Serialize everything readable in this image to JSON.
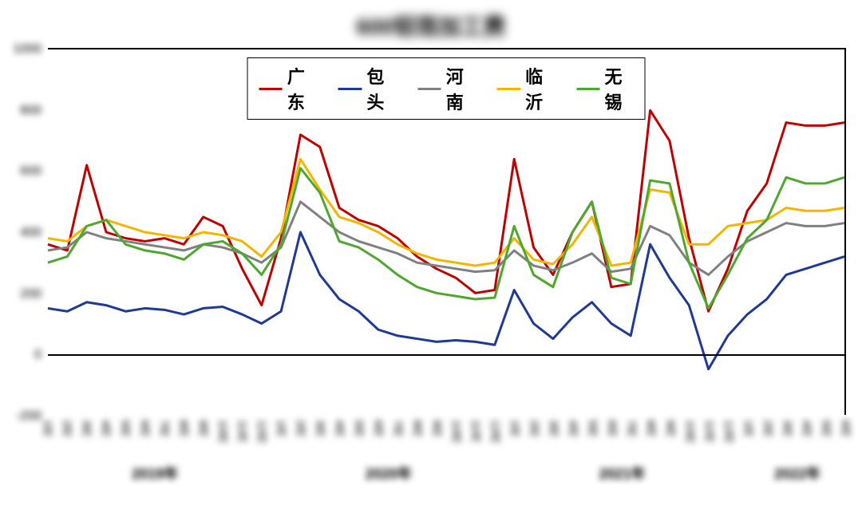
{
  "chart": {
    "type": "line",
    "title": "600铝箔加工费",
    "title_fontsize": 28,
    "background_color": "#ffffff",
    "plot_border_color": "#000000",
    "ylim": [
      -200,
      1000
    ],
    "ytick_step": 200,
    "yticks": [
      -200,
      0,
      200,
      400,
      600,
      800,
      1000
    ],
    "x_count": 42,
    "x_labels": [
      "1月",
      "2月",
      "3月",
      "4月",
      "5月",
      "6月",
      "7月",
      "8月",
      "9月",
      "10月",
      "11月",
      "12月",
      "1月",
      "2月",
      "3月",
      "4月",
      "5月",
      "6月",
      "7月",
      "8月",
      "9月",
      "10月",
      "11月",
      "12月",
      "1月",
      "2月",
      "3月",
      "4月",
      "5月",
      "6月",
      "7月",
      "8月",
      "9月",
      "10月",
      "11月",
      "12月",
      "1月",
      "2月",
      "3月",
      "4月",
      "5月",
      "6月"
    ],
    "year_breaks": [
      {
        "label": "2019年",
        "center_index": 5.5
      },
      {
        "label": "2020年",
        "center_index": 17.5
      },
      {
        "label": "2021年",
        "center_index": 29.5
      },
      {
        "label": "2022年",
        "center_index": 38.5
      }
    ],
    "line_width": 3,
    "legend": {
      "position": "top-center",
      "border_color": "#000000",
      "font_size": 22,
      "font_weight": "bold"
    },
    "series": [
      {
        "name": "广东",
        "color": "#c00000",
        "values": [
          360,
          340,
          620,
          400,
          380,
          370,
          380,
          360,
          450,
          420,
          280,
          160,
          380,
          720,
          680,
          480,
          440,
          420,
          380,
          320,
          280,
          250,
          200,
          210,
          640,
          350,
          260,
          400,
          500,
          220,
          230,
          800,
          700,
          380,
          140,
          280,
          470,
          560,
          760,
          750,
          750,
          760
        ]
      },
      {
        "name": "包头",
        "color": "#1f3a93",
        "values": [
          150,
          140,
          170,
          160,
          140,
          150,
          145,
          130,
          150,
          155,
          130,
          100,
          140,
          400,
          260,
          180,
          140,
          80,
          60,
          50,
          40,
          45,
          40,
          30,
          210,
          100,
          50,
          120,
          170,
          100,
          60,
          360,
          250,
          160,
          -50,
          60,
          130,
          180,
          260,
          280,
          300,
          320
        ]
      },
      {
        "name": "河南",
        "color": "#808080",
        "values": [
          340,
          350,
          400,
          380,
          370,
          360,
          350,
          340,
          360,
          350,
          330,
          300,
          350,
          500,
          450,
          400,
          370,
          350,
          330,
          300,
          290,
          280,
          270,
          275,
          340,
          290,
          275,
          300,
          330,
          270,
          280,
          420,
          390,
          300,
          260,
          320,
          370,
          400,
          430,
          420,
          420,
          430
        ]
      },
      {
        "name": "临沂",
        "color": "#f2b600",
        "values": [
          380,
          370,
          420,
          440,
          420,
          400,
          390,
          380,
          400,
          390,
          370,
          320,
          400,
          640,
          540,
          450,
          430,
          400,
          360,
          330,
          310,
          300,
          290,
          300,
          380,
          310,
          295,
          360,
          450,
          290,
          300,
          540,
          530,
          360,
          360,
          420,
          430,
          440,
          480,
          470,
          470,
          480
        ]
      },
      {
        "name": "无锡",
        "color": "#4ea72e",
        "values": [
          300,
          320,
          420,
          440,
          360,
          340,
          330,
          310,
          360,
          370,
          330,
          260,
          360,
          610,
          530,
          370,
          350,
          310,
          260,
          220,
          200,
          190,
          180,
          185,
          420,
          260,
          220,
          400,
          500,
          250,
          230,
          570,
          560,
          300,
          150,
          260,
          380,
          440,
          580,
          560,
          560,
          580
        ]
      }
    ]
  }
}
